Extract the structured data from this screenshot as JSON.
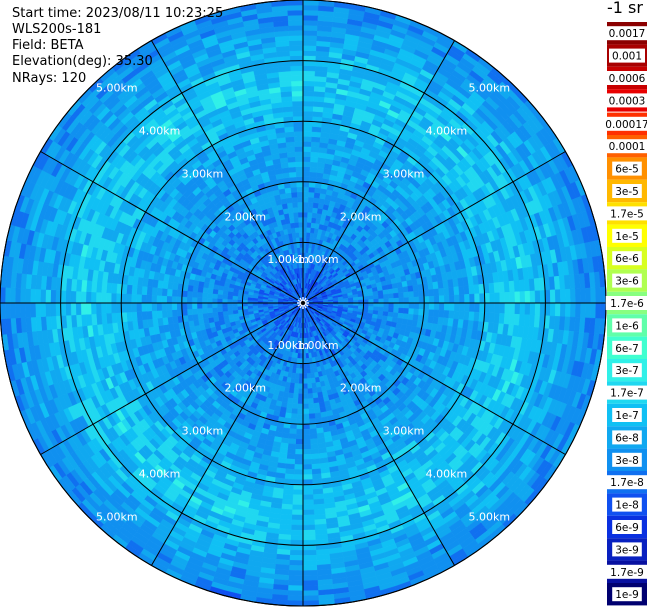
{
  "info": {
    "start_time": "Start time: 2023/08/11 10:23:25",
    "instrument": "WLS200s-181",
    "field": "Field: BETA",
    "elevation": "Elevation(deg): 35.30",
    "nrays": "NRays: 120"
  },
  "colorbar": {
    "unit": "-1 sr",
    "labels": [
      "0.0017",
      "0.001",
      "0.0006",
      "0.0003",
      "0.00017",
      "0.0001",
      "6e-5",
      "3e-5",
      "1.7e-5",
      "1e-5",
      "6e-6",
      "3e-6",
      "1.7e-6",
      "1e-6",
      "6e-7",
      "3e-7",
      "1.7e-7",
      "1e-7",
      "6e-8",
      "3e-8",
      "1.7e-8",
      "1e-8",
      "6e-9",
      "3e-9",
      "1.7e-9",
      "1e-9"
    ],
    "colors": [
      "#8b0000",
      "#a80000",
      "#c80000",
      "#e80000",
      "#ff3000",
      "#ff6000",
      "#ff9000",
      "#ffb800",
      "#ffe000",
      "#ffff00",
      "#d8ff20",
      "#b0ff50",
      "#88ff80",
      "#60ffaa",
      "#40ffd0",
      "#30f0e8",
      "#20d8f0",
      "#10c0f4",
      "#10a8f0",
      "#1090f0",
      "#1070f0",
      "#1050f0",
      "#0a30e0",
      "#0820c0",
      "#0810a0",
      "#000070"
    ]
  },
  "chart_data": {
    "type": "heatmap",
    "subtype": "polar-ppi",
    "field": "BETA",
    "nrays": 120,
    "elevation_deg": 35.3,
    "range_rings_km": [
      1,
      2,
      3,
      4,
      5
    ],
    "ring_labels": [
      "1.00km",
      "2.00km",
      "3.00km",
      "4.00km",
      "5.00km"
    ],
    "max_range_km": 5.0,
    "spoke_step_deg": 30,
    "radial_profile": [
      {
        "r_km": 0.0,
        "beta": 1.2e-08
      },
      {
        "r_km": 0.4,
        "beta": 1.4e-08
      },
      {
        "r_km": 0.8,
        "beta": 2.5e-08
      },
      {
        "r_km": 1.5,
        "beta": 3.5e-08
      },
      {
        "r_km": 2.5,
        "beta": 5e-08
      },
      {
        "r_km": 3.2,
        "beta": 9e-08
      },
      {
        "r_km": 3.6,
        "beta": 1.3e-07
      },
      {
        "r_km": 4.2,
        "beta": 7e-08
      },
      {
        "r_km": 4.8,
        "beta": 3.5e-08
      },
      {
        "r_km": 5.0,
        "beta": 2.5e-08
      }
    ]
  }
}
